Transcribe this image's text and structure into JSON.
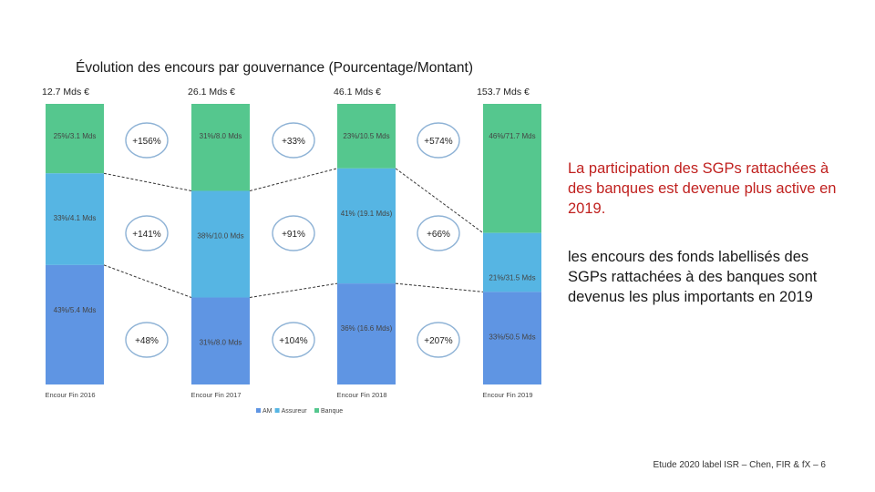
{
  "slide": {
    "title": "Évolution des encours par gouvernance (Pourcentage/Montant)",
    "notes": [
      "La participation des SGPs rattachées à des banques est devenue plus active en 2019.",
      "les encours des fonds labellisés des SGPs rattachées à des banques sont devenus les plus importants en 2019"
    ],
    "footer": "Etude 2020 label ISR – Chen, FIR & fX – 6"
  },
  "chart_data": {
    "type": "bar",
    "stacked": "percent",
    "title": "Évolution des encours par gouvernance (Pourcentage/Montant)",
    "categories": [
      "Encour Fin 2016",
      "Encour Fin 2017",
      "Encour Fin 2018",
      "Encour Fin 2019"
    ],
    "totals": [
      "12.7 Mds €",
      "26.1 Mds €",
      "46.1 Mds €",
      "153.7 Mds €"
    ],
    "series": [
      {
        "name": "AM",
        "color": "#5f95e3",
        "values": [
          43,
          31,
          36,
          33
        ],
        "labels": [
          "43%/5.4 Mds",
          "31%/8.0 Mds",
          "36% (16.6 Mds)",
          "33%/50.5 Mds"
        ]
      },
      {
        "name": "Assureur",
        "color": "#56b5e3",
        "values": [
          33,
          38,
          41,
          21
        ],
        "labels": [
          "33%/4.1 Mds",
          "38%/10.0 Mds",
          "41% (19.1 Mds)",
          "21%/31.5 Mds"
        ]
      },
      {
        "name": "Banque",
        "color": "#55c78e",
        "values": [
          25,
          31,
          23,
          46
        ],
        "labels": [
          "25%/3.1 Mds",
          "31%/8.0 Mds",
          "23%/10.5 Mds",
          "46%/71.7 Mds"
        ]
      }
    ],
    "growth_annotations": {
      "Banque": [
        "+156%",
        "+33%",
        "+574%"
      ],
      "Assureur": [
        "+141%",
        "+91%",
        "+66%"
      ],
      "AM": [
        "+48%",
        "+104%",
        "+207%"
      ]
    },
    "legend": {
      "position": "bottom",
      "entries": [
        "AM",
        "Assureur",
        "Banque"
      ]
    },
    "ylim": [
      0,
      100
    ],
    "grid": false
  }
}
